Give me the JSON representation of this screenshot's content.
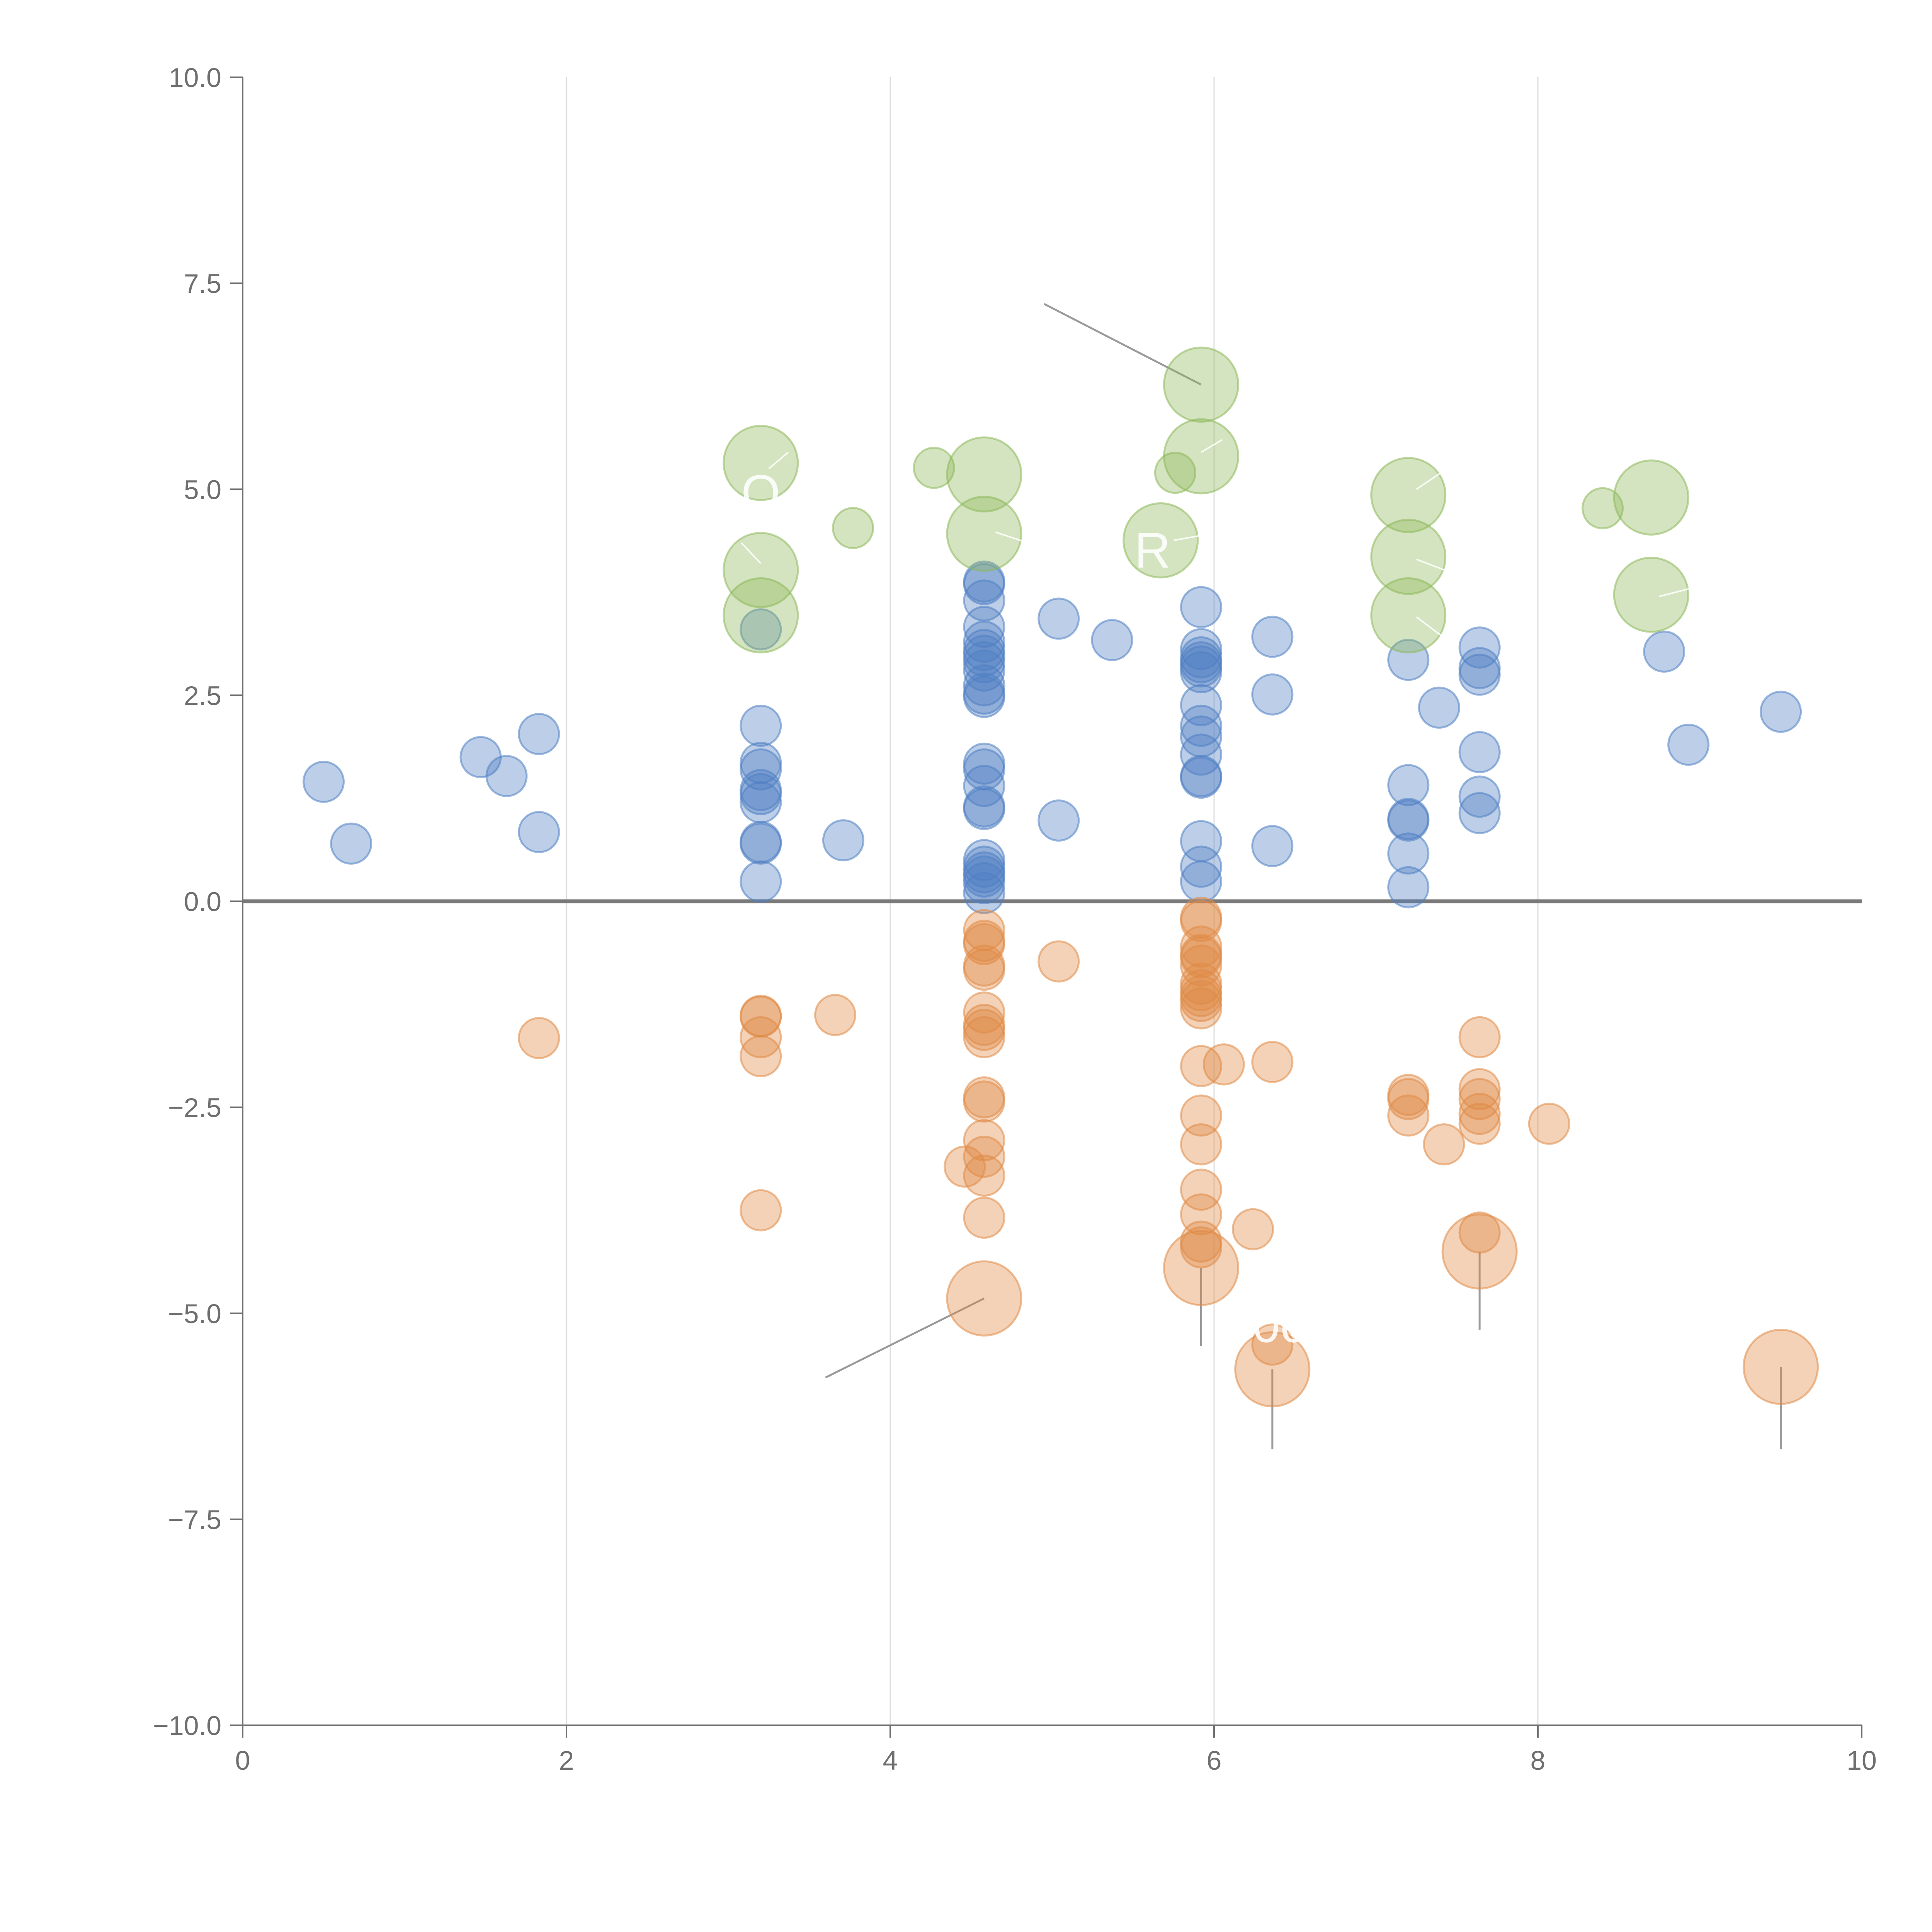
{
  "chart_data": {
    "type": "scatter",
    "title": "",
    "xlabel": "",
    "ylabel": "",
    "xlim": [
      0,
      10
    ],
    "ylim": [
      -10,
      10
    ],
    "x_ticks": [
      0,
      2,
      4,
      6,
      8,
      10
    ],
    "x_tick_labels": [
      "0",
      "2",
      "4",
      "6",
      "8",
      "10"
    ],
    "y_ticks": [
      10,
      7.5,
      5,
      2.5,
      0,
      -2.5,
      -5,
      -7.5,
      -10
    ],
    "y_tick_labels": [
      "10.0",
      "7.5",
      "5.0",
      "2.5",
      "0.0",
      "−2.5",
      "−5.0",
      "−7.5",
      "−10.0"
    ],
    "grid": "vertical",
    "zero_line": true,
    "faint_labels": [
      "O",
      "R",
      "0c"
    ],
    "series": [
      {
        "name": "blue",
        "color": "#4f7fc3",
        "points": [
          [
            0.5,
            1.45
          ],
          [
            0.67,
            0.7
          ],
          [
            1.47,
            1.75
          ],
          [
            1.63,
            1.52
          ],
          [
            1.83,
            2.03
          ],
          [
            1.83,
            0.84
          ],
          [
            3.2,
            3.3
          ],
          [
            3.2,
            2.13
          ],
          [
            3.2,
            1.68
          ],
          [
            3.2,
            1.6
          ],
          [
            3.2,
            1.35
          ],
          [
            3.2,
            1.3
          ],
          [
            3.2,
            1.2
          ],
          [
            3.2,
            0.72
          ],
          [
            3.2,
            0.7
          ],
          [
            3.2,
            0.24
          ],
          [
            3.71,
            0.74
          ],
          [
            4.58,
            3.88
          ],
          [
            4.58,
            3.85
          ],
          [
            4.58,
            3.65
          ],
          [
            4.58,
            3.33
          ],
          [
            4.58,
            3.15
          ],
          [
            4.58,
            3.05
          ],
          [
            4.58,
            2.98
          ],
          [
            4.58,
            2.9
          ],
          [
            4.58,
            2.8
          ],
          [
            4.58,
            2.62
          ],
          [
            4.58,
            2.52
          ],
          [
            4.58,
            2.48
          ],
          [
            4.58,
            1.67
          ],
          [
            4.58,
            1.6
          ],
          [
            4.58,
            1.4
          ],
          [
            4.58,
            1.15
          ],
          [
            4.58,
            1.12
          ],
          [
            4.58,
            0.5
          ],
          [
            4.58,
            0.42
          ],
          [
            4.58,
            0.35
          ],
          [
            4.58,
            0.3
          ],
          [
            4.58,
            0.22
          ],
          [
            4.58,
            0.1
          ],
          [
            5.04,
            3.43
          ],
          [
            5.04,
            0.98
          ],
          [
            5.37,
            3.17
          ],
          [
            5.92,
            3.57
          ],
          [
            5.92,
            3.06
          ],
          [
            5.92,
            2.96
          ],
          [
            5.92,
            2.9
          ],
          [
            5.92,
            2.85
          ],
          [
            5.92,
            2.78
          ],
          [
            5.92,
            2.38
          ],
          [
            5.92,
            2.13
          ],
          [
            5.92,
            2.0
          ],
          [
            5.92,
            1.78
          ],
          [
            5.92,
            1.52
          ],
          [
            5.92,
            1.5
          ],
          [
            5.92,
            0.73
          ],
          [
            5.92,
            0.42
          ],
          [
            5.92,
            0.24
          ],
          [
            6.36,
            3.21
          ],
          [
            6.36,
            2.51
          ],
          [
            6.36,
            0.67
          ],
          [
            7.2,
            2.93
          ],
          [
            7.2,
            1.41
          ],
          [
            7.2,
            1.0
          ],
          [
            7.2,
            0.98
          ],
          [
            7.2,
            0.58
          ],
          [
            7.2,
            0.17
          ],
          [
            7.39,
            2.35
          ],
          [
            7.64,
            3.08
          ],
          [
            7.64,
            2.83
          ],
          [
            7.64,
            2.75
          ],
          [
            7.64,
            1.81
          ],
          [
            7.64,
            1.27
          ],
          [
            7.64,
            1.07
          ],
          [
            8.78,
            3.03
          ],
          [
            8.93,
            1.9
          ],
          [
            9.5,
            2.3
          ]
        ],
        "sizes": []
      },
      {
        "name": "orange",
        "color": "#e08a45",
        "points": [
          [
            1.83,
            -1.66
          ],
          [
            3.2,
            -1.39
          ],
          [
            3.2,
            -1.4
          ],
          [
            3.2,
            -1.65
          ],
          [
            3.2,
            -1.88
          ],
          [
            3.2,
            -3.75
          ],
          [
            3.66,
            -1.38
          ],
          [
            4.58,
            -0.35
          ],
          [
            4.58,
            -0.48
          ],
          [
            4.58,
            -0.52
          ],
          [
            4.58,
            -0.78
          ],
          [
            4.58,
            -0.83
          ],
          [
            4.58,
            -1.35
          ],
          [
            4.58,
            -1.5
          ],
          [
            4.58,
            -1.56
          ],
          [
            4.58,
            -1.65
          ],
          [
            4.58,
            -2.38
          ],
          [
            4.58,
            -2.43
          ],
          [
            4.58,
            -2.9
          ],
          [
            4.58,
            -3.1
          ],
          [
            4.58,
            -3.33
          ],
          [
            4.58,
            -3.84
          ],
          [
            4.46,
            -3.22
          ],
          [
            5.04,
            -0.73
          ],
          [
            5.92,
            -0.2
          ],
          [
            5.92,
            -0.24
          ],
          [
            5.92,
            -0.55
          ],
          [
            5.92,
            -0.65
          ],
          [
            5.92,
            -0.68
          ],
          [
            5.92,
            -0.78
          ],
          [
            5.92,
            -1.0
          ],
          [
            5.92,
            -1.08
          ],
          [
            5.92,
            -1.15
          ],
          [
            5.92,
            -1.21
          ],
          [
            5.92,
            -1.3
          ],
          [
            5.92,
            -2.0
          ],
          [
            5.92,
            -2.6
          ],
          [
            5.92,
            -2.95
          ],
          [
            5.92,
            -3.5
          ],
          [
            5.92,
            -3.8
          ],
          [
            5.92,
            -4.13
          ],
          [
            5.92,
            -4.2
          ],
          [
            6.06,
            -1.98
          ],
          [
            6.24,
            -3.98
          ],
          [
            6.36,
            -1.95
          ],
          [
            6.36,
            -5.38
          ],
          [
            7.2,
            -2.35
          ],
          [
            7.2,
            -2.4
          ],
          [
            7.2,
            -2.6
          ],
          [
            7.42,
            -2.95
          ],
          [
            7.64,
            -1.65
          ],
          [
            7.64,
            -2.28
          ],
          [
            7.64,
            -2.4
          ],
          [
            7.64,
            -2.58
          ],
          [
            7.64,
            -2.7
          ],
          [
            7.64,
            -4.02
          ],
          [
            8.07,
            -2.7
          ],
          [
            4.58,
            -4.82
          ],
          [
            5.92,
            -4.45
          ],
          [
            6.36,
            -5.68
          ],
          [
            7.64,
            -4.25
          ],
          [
            9.5,
            -5.65
          ]
        ],
        "sizes": [
          1,
          1,
          1,
          1,
          1,
          1,
          1,
          1,
          1,
          1,
          1,
          1,
          1,
          1,
          1,
          1,
          1,
          1,
          1,
          1,
          1,
          1,
          1,
          1,
          1,
          1,
          1,
          1,
          1,
          1,
          1,
          1,
          1,
          1,
          1,
          1,
          1,
          1,
          1,
          1,
          1,
          1,
          1,
          1,
          1,
          1,
          1,
          1,
          1,
          1,
          1,
          1,
          1,
          1,
          1,
          1,
          1,
          2,
          2,
          2,
          2,
          2
        ]
      },
      {
        "name": "green",
        "color": "#8db85a",
        "points": [
          [
            3.2,
            5.32
          ],
          [
            3.2,
            4.02
          ],
          [
            3.2,
            3.47
          ],
          [
            3.77,
            4.53
          ],
          [
            4.27,
            5.26
          ],
          [
            4.58,
            5.18
          ],
          [
            4.58,
            4.46
          ],
          [
            5.67,
            4.38
          ],
          [
            5.76,
            5.2
          ],
          [
            5.92,
            6.27
          ],
          [
            5.92,
            5.4
          ],
          [
            7.2,
            4.93
          ],
          [
            7.2,
            4.18
          ],
          [
            7.2,
            3.47
          ],
          [
            8.4,
            4.77
          ],
          [
            8.7,
            4.9
          ],
          [
            8.7,
            3.72
          ]
        ],
        "sizes": [
          2,
          2,
          2,
          1,
          1,
          2,
          2,
          2,
          1,
          2,
          2,
          2,
          2,
          2,
          1,
          2,
          2
        ]
      }
    ]
  }
}
